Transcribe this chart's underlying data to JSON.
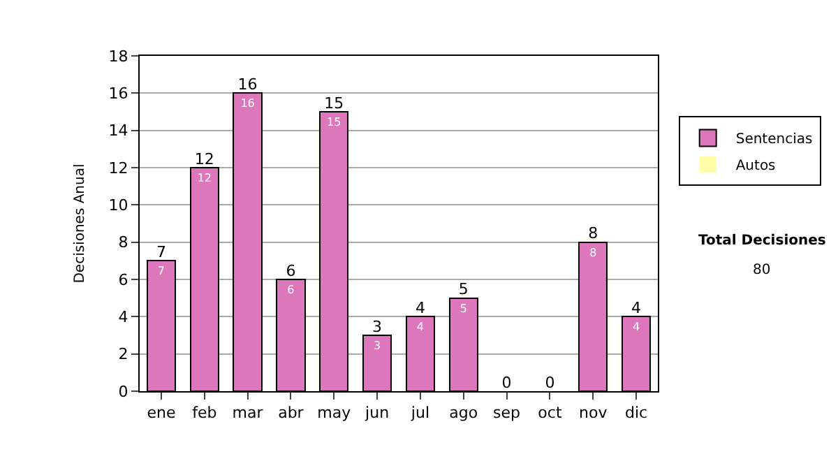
{
  "chart_data": {
    "type": "bar",
    "ylabel": "Decisiones Anual",
    "stacked": true,
    "categories": [
      "ene",
      "feb",
      "mar",
      "abr",
      "may",
      "jun",
      "jul",
      "ago",
      "sep",
      "oct",
      "nov",
      "dic"
    ],
    "series": [
      {
        "name": "Sentencias",
        "color": "#dd77bb",
        "values": [
          7,
          12,
          16,
          6,
          15,
          3,
          4,
          5,
          0,
          0,
          8,
          4
        ],
        "value_labels": [
          "7",
          "12",
          "16",
          "6",
          "15",
          "3",
          "4",
          "5",
          null,
          null,
          "8",
          "4"
        ]
      },
      {
        "name": "Autos",
        "color": "#ffffaa",
        "values": [
          0,
          0,
          0,
          0,
          0,
          0,
          0,
          0,
          0,
          0,
          0,
          0
        ]
      }
    ],
    "totals": [
      "7",
      "12",
      "16",
      "6",
      "15",
      "3",
      "4",
      "5",
      "0",
      "0",
      "8",
      "4"
    ],
    "ylim": [
      0,
      18
    ],
    "yticks": [
      0,
      2,
      4,
      6,
      8,
      10,
      12,
      14,
      16,
      18
    ],
    "grid": "y",
    "legend": "right",
    "annotations": [
      "Total Decisiones",
      "80"
    ]
  }
}
